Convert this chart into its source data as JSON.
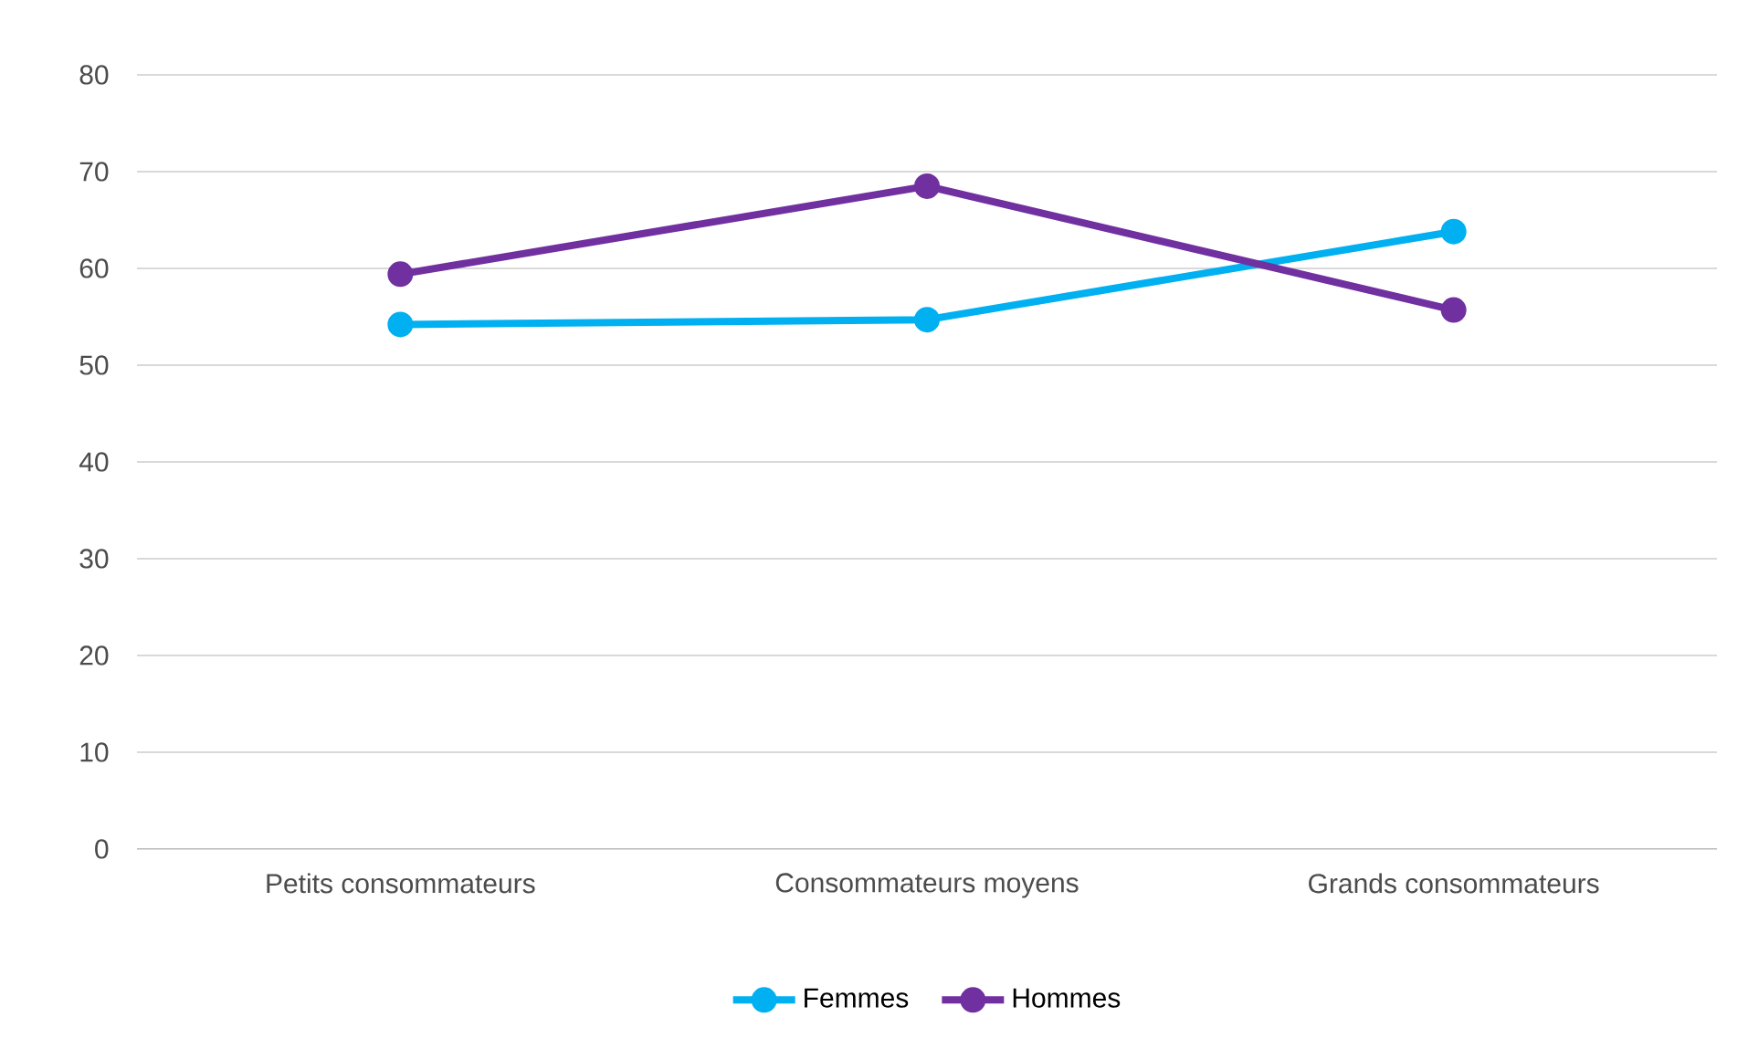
{
  "chart_data": {
    "type": "line",
    "categories": [
      "Petits consommateurs",
      "Consommateurs moyens",
      "Grands consommateurs"
    ],
    "series": [
      {
        "name": "Femmes",
        "color": "#00b0f0",
        "values": [
          54.2,
          54.7,
          63.8
        ]
      },
      {
        "name": "Hommes",
        "color": "#7030a0",
        "values": [
          59.4,
          68.5,
          55.7
        ]
      }
    ],
    "ylim": [
      0,
      80
    ],
    "yticks": [
      0,
      10,
      20,
      30,
      40,
      50,
      60,
      70,
      80
    ],
    "grid": "y",
    "legend": "bottom",
    "marker": "circle",
    "line_style": "solid"
  }
}
